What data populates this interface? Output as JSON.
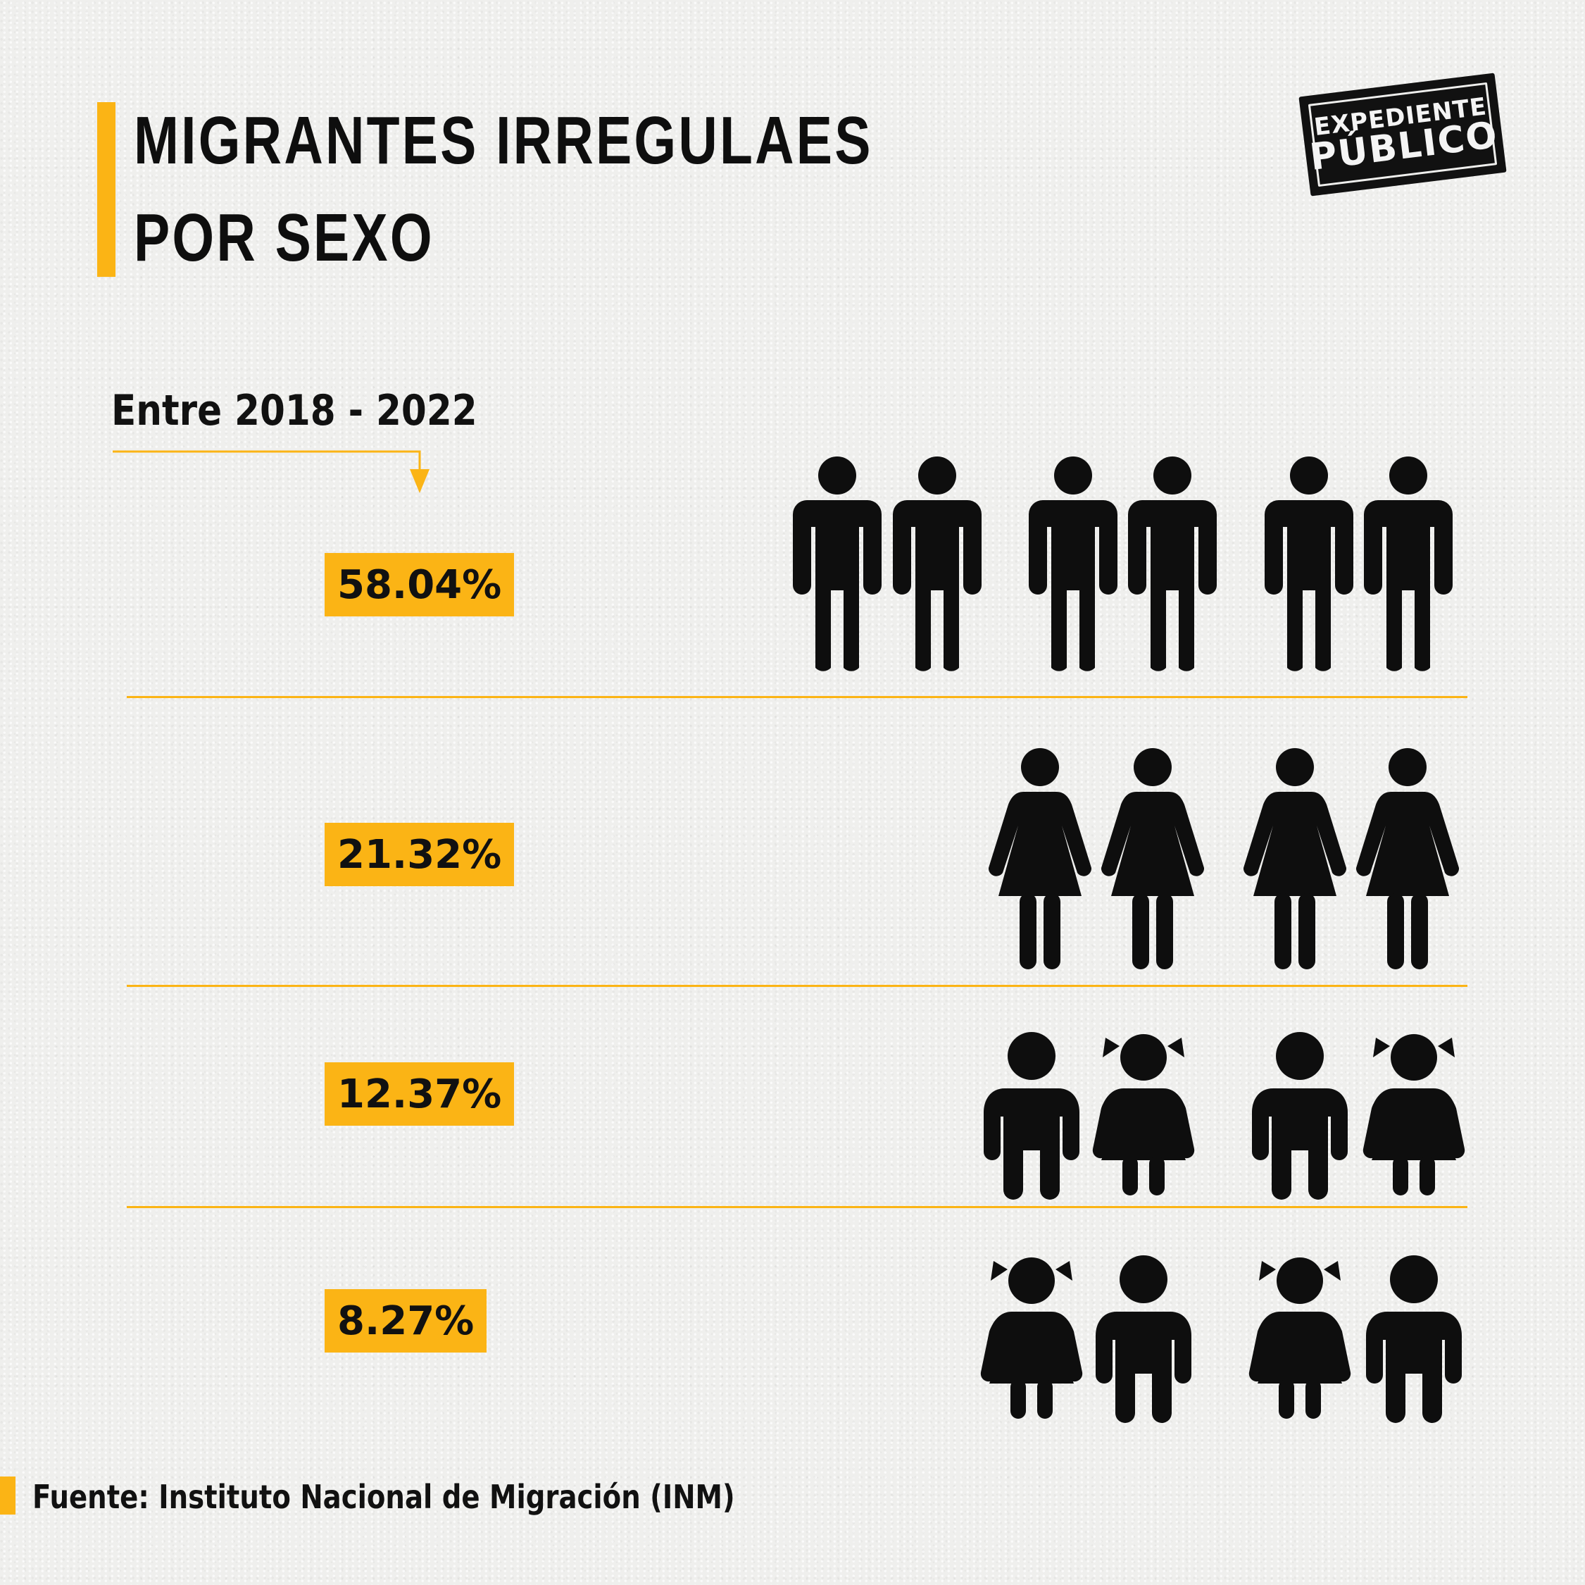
{
  "header": {
    "title_line1": "MIGRANTES IRREGULAES",
    "title_line2": "POR SEXO"
  },
  "logo": {
    "line1": "EXPEDIENTE",
    "line2": "PÚBLICO"
  },
  "subtitle": "Entre 2018 - 2022",
  "chart_data": {
    "type": "pictogram",
    "title": "MIGRANTES IRREGULAES POR SEXO",
    "subtitle": "Entre 2018 - 2022",
    "categories": [
      "hombres",
      "mujeres",
      "niños y niñas",
      "niñas y niños"
    ],
    "values": [
      58.04,
      21.32,
      12.37,
      8.27
    ],
    "labels": [
      "58.04%",
      "21.32%",
      "12.37%",
      "8.27%"
    ],
    "icons": [
      [
        "man-icon",
        "man-icon",
        "man-icon",
        "man-icon",
        "man-icon",
        "man-icon"
      ],
      [
        "woman-icon",
        "woman-icon",
        "woman-icon",
        "woman-icon"
      ],
      [
        "boy-icon",
        "girl-icon",
        "boy-icon",
        "girl-icon"
      ],
      [
        "girl-icon",
        "boy-icon",
        "girl-icon",
        "boy-icon"
      ]
    ]
  },
  "source": "Fuente: Instituto Nacional de Migración (INM)",
  "colors": {
    "accent": "#fbb415",
    "ink": "#0e0e0e",
    "background": "#efefed"
  }
}
